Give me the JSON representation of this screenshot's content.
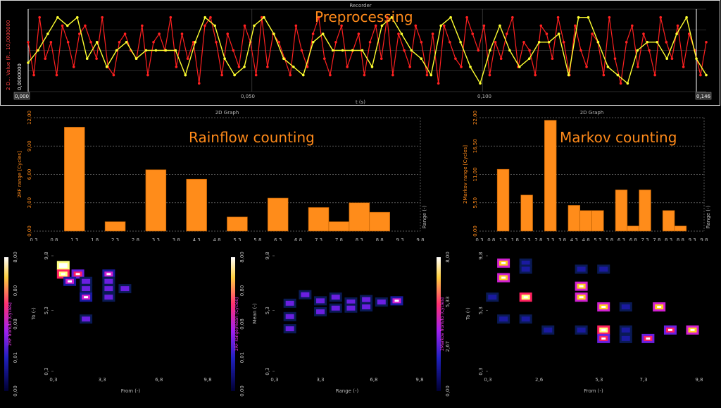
{
  "recorder": {
    "title": "Recorder",
    "overlay_label": "Preprocessing",
    "y_axis_label": "2 D... Value (P... 10,0000000",
    "y_min_label": "0,0000000",
    "x_label": "t (s)",
    "x_start": "0,000",
    "x_end": "0,146",
    "x_ticks": [
      "0,050",
      "0,100"
    ],
    "colors": {
      "raw": "#ff2020",
      "processed": "#ffff30"
    }
  },
  "rainflow_hist": {
    "title": "2D Graph",
    "overlay_label": "Rainflow counting",
    "ylabel": "2RF range [Cycles]",
    "xlabel": "Range (-)"
  },
  "markov_hist": {
    "title": "2D Graph",
    "overlay_label": "Markov counting",
    "ylabel": "2Markov range [Cycles]",
    "xlabel": "Range (-)"
  },
  "rainflow_matrix": {
    "colorbar_label": "2RF from/to [Cycles]",
    "colorbar_ticks": [
      "0,00",
      "0,01",
      "0,08",
      "0,80",
      "8,00"
    ],
    "ylabel": "To (-)",
    "xlabel": "From (-)",
    "x_ticks": [
      "0,3",
      "3,3",
      "6,8",
      "9,8"
    ],
    "y_ticks": [
      "0,3",
      "5,3",
      "9,8"
    ]
  },
  "range_mean_matrix": {
    "colorbar_label": "2RF range/mean [Cycles]",
    "colorbar_ticks": [
      "0,00",
      "0,01",
      "0,08",
      "0,80",
      "8,00"
    ],
    "ylabel": "Mean (-)",
    "xlabel": "Range (-)",
    "x_ticks": [
      "0,3",
      "3,3",
      "6,8",
      "9,8"
    ],
    "y_ticks": [
      "0,3",
      "5,3",
      "9,8"
    ]
  },
  "markov_matrix": {
    "colorbar_label": "2Markov from/to [Cycles]",
    "colorbar_ticks": [
      "0,00",
      "2,67",
      "5,33",
      "8,00"
    ],
    "ylabel": "To (-)",
    "xlabel": "From (-)",
    "x_ticks": [
      "0,3",
      "2,6",
      "5,3",
      "7,3",
      "9,8"
    ],
    "y_ticks": [
      "0,3",
      "5,3",
      "9,8"
    ]
  },
  "chart_data": [
    {
      "type": "line",
      "title": "Recorder",
      "xlabel": "t (s)",
      "ylabel": "2 D... Value (P...",
      "xlim": [
        0,
        0.146
      ],
      "ylim": [
        0,
        10
      ],
      "series": [
        {
          "values": [
            6,
            2,
            9,
            4,
            6,
            2,
            8,
            6,
            3,
            7,
            8,
            6,
            4,
            9,
            3,
            2,
            6,
            7,
            5,
            4,
            8,
            2,
            6,
            7,
            5,
            9,
            3,
            7,
            4,
            6,
            1,
            8,
            9,
            6,
            2,
            7,
            5,
            3,
            8,
            6,
            2,
            9,
            3,
            7,
            6,
            4,
            2,
            8,
            5,
            3,
            7,
            9,
            4,
            2,
            6,
            8,
            3,
            5,
            7,
            2,
            6,
            8,
            4,
            9,
            2,
            7,
            5,
            3,
            8,
            6,
            2,
            7,
            1,
            8,
            6,
            4,
            3,
            9,
            7,
            5,
            8,
            2,
            6,
            4,
            7,
            9,
            3,
            6,
            5,
            2,
            8,
            7,
            4,
            9,
            6,
            2,
            8,
            5,
            3,
            7,
            6,
            2,
            9,
            4,
            1,
            6,
            8,
            3,
            7,
            5,
            2,
            9,
            6,
            4,
            8,
            3,
            7,
            5,
            2,
            6
          ]
        },
        {
          "values": [
            3.5,
            5,
            7,
            9,
            8,
            9,
            4,
            6,
            3,
            5,
            6,
            4,
            5,
            5,
            5,
            5,
            2,
            6,
            9,
            8,
            4,
            2,
            3,
            8,
            9,
            7,
            4,
            3,
            2,
            6,
            7,
            5,
            5,
            5,
            5,
            3,
            8,
            9,
            7,
            5,
            4,
            2,
            8,
            9,
            6,
            3,
            1,
            5,
            8,
            5,
            3,
            4,
            6,
            6,
            7,
            2,
            9,
            9,
            6,
            3,
            2,
            1,
            5,
            6,
            6,
            4,
            7,
            9,
            4,
            2
          ]
        }
      ]
    },
    {
      "type": "bar",
      "title": "2D Graph",
      "xlabel": "Range (-)",
      "ylabel": "2RF range [Cycles]",
      "ylim": [
        0,
        12
      ],
      "x_ticks": [
        "0,3",
        "0,8",
        "1,3",
        "1,8",
        "2,3",
        "2,8",
        "3,3",
        "3,8",
        "4,3",
        "4,8",
        "5,3",
        "5,8",
        "6,3",
        "6,8",
        "7,3",
        "7,8",
        "8,3",
        "8,8",
        "9,3",
        "9,8"
      ],
      "y_ticks": [
        "0,00",
        "3,00",
        "6,00",
        "9,00",
        "12,00"
      ],
      "categories": [
        "1,3",
        "2,3",
        "3,3",
        "4,3",
        "5,3",
        "6,3",
        "7,3",
        "7,8",
        "8,3",
        "8,8"
      ],
      "x": [
        1.3,
        2.3,
        3.3,
        4.3,
        5.3,
        6.3,
        7.3,
        7.8,
        8.3,
        8.8
      ],
      "values": [
        11,
        1,
        6.5,
        5.5,
        1.5,
        3.5,
        2.5,
        1,
        3,
        2
      ]
    },
    {
      "type": "bar",
      "title": "2D Graph",
      "xlabel": "Range (-)",
      "ylabel": "2Markov range [Cycles]",
      "ylim": [
        0,
        22
      ],
      "x_ticks": [
        "0,3",
        "0,8",
        "1,3",
        "1,8",
        "2,3",
        "2,8",
        "3,3",
        "3,8",
        "4,3",
        "4,8",
        "5,3",
        "5,8",
        "6,3",
        "6,8",
        "7,3",
        "7,8",
        "8,3",
        "8,8",
        "9,3",
        "9,8"
      ],
      "y_ticks": [
        "0,00",
        "5,50",
        "11,00",
        "16,50",
        "22,00"
      ],
      "categories": [
        "1,3",
        "2,3",
        "3,3",
        "4,3",
        "4,8",
        "5,3",
        "6,3",
        "6,8",
        "7,3",
        "8,3",
        "8,8"
      ],
      "x": [
        1.3,
        2.3,
        3.3,
        4.3,
        4.8,
        5.3,
        6.3,
        6.8,
        7.3,
        8.3,
        8.8
      ],
      "values": [
        12,
        7,
        21.5,
        5,
        4,
        4,
        8,
        1,
        8,
        4,
        1
      ]
    },
    {
      "type": "heatmap",
      "xlabel": "From (-)",
      "ylabel": "To (-)",
      "xlim": [
        0.3,
        9.8
      ],
      "ylim": [
        0.3,
        9.8
      ],
      "cells": [
        [
          0.9,
          9.0,
          8
        ],
        [
          0.9,
          8.3,
          6
        ],
        [
          1.8,
          8.3,
          4
        ],
        [
          3.7,
          8.3,
          3
        ],
        [
          1.3,
          7.7,
          3
        ],
        [
          2.3,
          7.7,
          2
        ],
        [
          3.7,
          7.7,
          2
        ],
        [
          2.3,
          7.1,
          2
        ],
        [
          3.7,
          7.1,
          2
        ],
        [
          4.7,
          7.1,
          2
        ],
        [
          2.3,
          6.4,
          3
        ],
        [
          3.7,
          6.4,
          2
        ],
        [
          2.3,
          4.6,
          2
        ]
      ]
    },
    {
      "type": "heatmap",
      "xlabel": "Range (-)",
      "ylabel": "Mean (-)",
      "xlim": [
        0.3,
        9.8
      ],
      "ylim": [
        0.3,
        9.8
      ],
      "cells": [
        [
          1.3,
          5.9,
          2
        ],
        [
          2.3,
          6.6,
          2
        ],
        [
          3.3,
          6.1,
          2
        ],
        [
          4.3,
          6.4,
          2
        ],
        [
          5.3,
          6.0,
          2
        ],
        [
          6.3,
          6.2,
          2
        ],
        [
          7.3,
          6.0,
          2
        ],
        [
          8.3,
          6.1,
          3
        ],
        [
          1.3,
          4.8,
          2
        ],
        [
          3.3,
          5.2,
          2
        ],
        [
          4.3,
          5.5,
          2
        ],
        [
          5.3,
          5.5,
          2
        ],
        [
          6.3,
          5.6,
          2
        ],
        [
          1.3,
          3.8,
          2
        ]
      ]
    },
    {
      "type": "heatmap",
      "xlabel": "From (-)",
      "ylabel": "To (-)",
      "xlim": [
        0.3,
        9.8
      ],
      "ylim": [
        0.3,
        9.8
      ],
      "cells": [
        [
          1.0,
          9.2,
          5
        ],
        [
          2.0,
          9.2,
          1
        ],
        [
          2.0,
          8.7,
          1
        ],
        [
          4.5,
          8.7,
          1
        ],
        [
          5.5,
          8.7,
          1
        ],
        [
          1.0,
          8.0,
          5
        ],
        [
          4.5,
          7.3,
          5
        ],
        [
          0.5,
          6.4,
          1
        ],
        [
          2.0,
          6.4,
          6
        ],
        [
          4.5,
          6.4,
          5
        ],
        [
          5.5,
          5.6,
          5
        ],
        [
          6.5,
          5.6,
          1
        ],
        [
          8.0,
          5.6,
          5
        ],
        [
          1.0,
          4.6,
          1
        ],
        [
          2.0,
          4.6,
          1
        ],
        [
          3.0,
          3.7,
          1
        ],
        [
          4.5,
          3.7,
          1
        ],
        [
          5.5,
          3.7,
          6
        ],
        [
          6.5,
          3.7,
          1
        ],
        [
          8.5,
          3.7,
          4
        ],
        [
          9.5,
          3.7,
          5
        ],
        [
          5.5,
          3.0,
          4
        ],
        [
          6.5,
          3.0,
          1
        ],
        [
          7.5,
          3.0,
          4
        ]
      ]
    }
  ]
}
